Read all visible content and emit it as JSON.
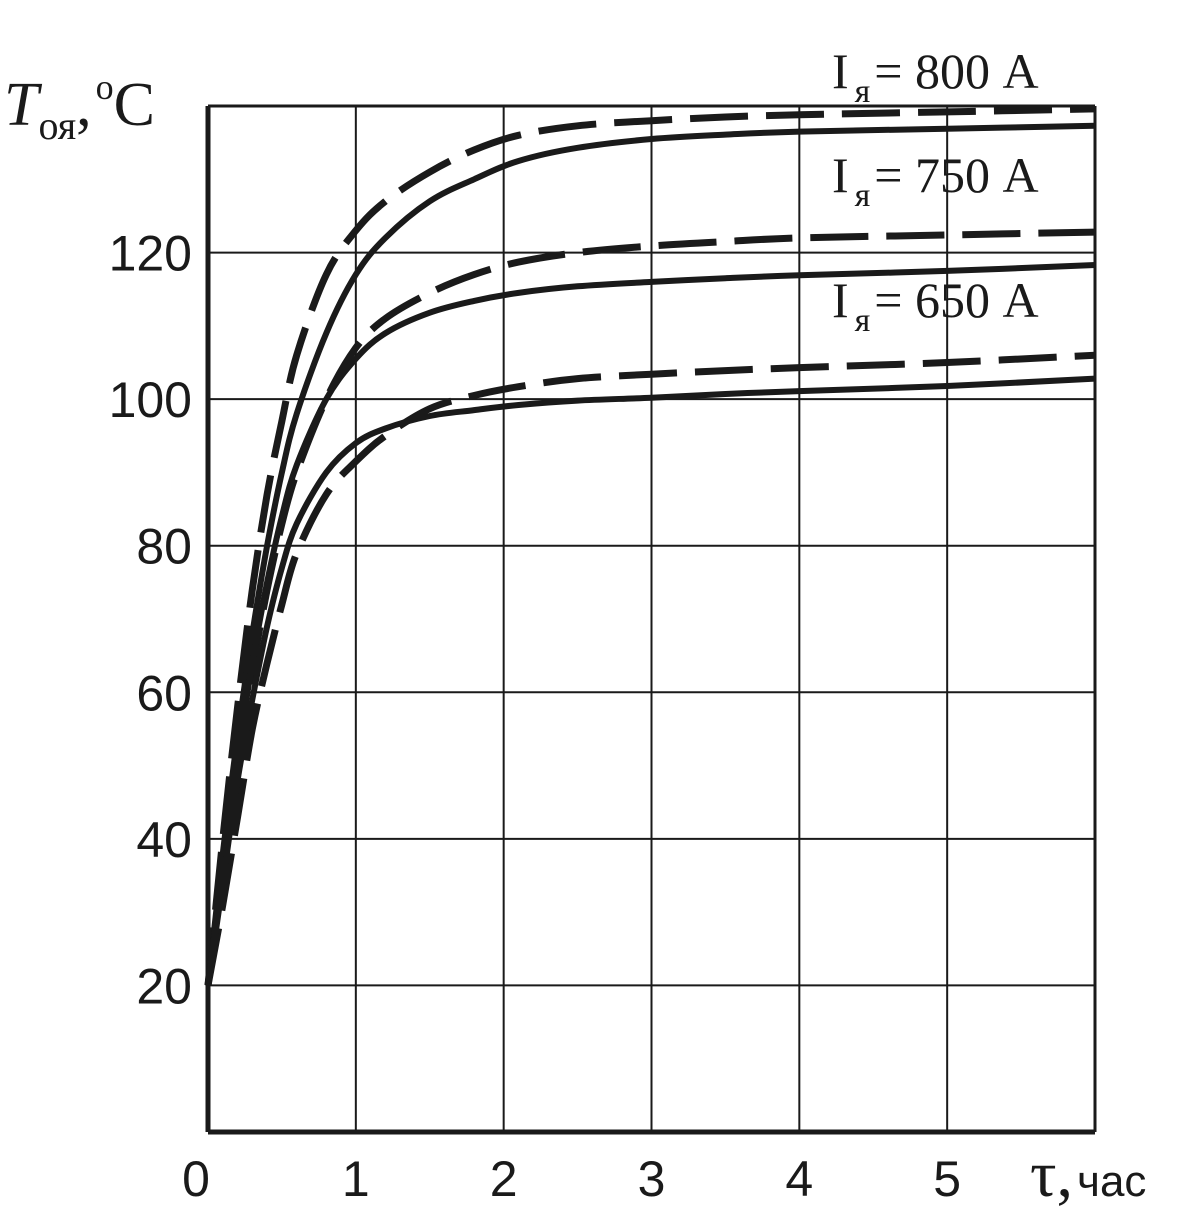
{
  "chart_data": {
    "type": "line",
    "title": "",
    "xlabel": {
      "symbol": "τ",
      "unit": "час"
    },
    "ylabel": {
      "symbol": "T",
      "subscript": "оя",
      "unit": "oC"
    },
    "xlim": [
      0,
      6
    ],
    "ylim": [
      0,
      140
    ],
    "x_ticks": [
      0,
      1,
      2,
      3,
      4,
      5
    ],
    "y_ticks": [
      20,
      40,
      60,
      80,
      100,
      120
    ],
    "x_tick_labels": [
      "0",
      "1",
      "2",
      "3",
      "4",
      "5"
    ],
    "y_tick_labels": [
      "20",
      "40",
      "60",
      "80",
      "100",
      "120"
    ],
    "grid": true,
    "legend_placement": "top-right",
    "line_color": "#1a1a1a",
    "labels": [
      {
        "text": "I",
        "sub": "я",
        "rest": "= 800 A"
      },
      {
        "text": "I",
        "sub": "я",
        "rest": "= 750 A"
      },
      {
        "text": "I",
        "sub": "я",
        "rest": "= 650 A"
      }
    ],
    "series": [
      {
        "style": "dashed",
        "x": [
          0,
          0.1,
          0.2,
          0.3,
          0.4,
          0.5,
          0.6,
          0.8,
          1.0,
          1.2,
          1.5,
          1.8,
          2.1,
          2.5,
          3,
          3.5,
          4,
          5,
          6
        ],
        "y": [
          20,
          40,
          58,
          74,
          87,
          97,
          106,
          117,
          123,
          127,
          131,
          134,
          136,
          137.3,
          138,
          138.5,
          138.8,
          139.2,
          139.6
        ]
      },
      {
        "style": "solid",
        "x": [
          0,
          0.1,
          0.2,
          0.3,
          0.4,
          0.5,
          0.6,
          0.8,
          1.0,
          1.2,
          1.5,
          1.8,
          2.1,
          2.5,
          3,
          3.5,
          4,
          5,
          6
        ],
        "y": [
          20,
          38,
          54,
          68,
          80,
          90,
          98,
          109,
          117,
          122,
          127,
          130,
          132.5,
          134.3,
          135.5,
          136.1,
          136.5,
          136.9,
          137.3
        ]
      },
      {
        "style": "dashed",
        "x": [
          0,
          0.1,
          0.2,
          0.3,
          0.4,
          0.5,
          0.6,
          0.8,
          1.0,
          1.2,
          1.5,
          1.8,
          2.1,
          2.5,
          3,
          3.5,
          4,
          5,
          6
        ],
        "y": [
          20,
          35,
          50,
          63,
          74,
          83,
          90,
          100,
          107,
          111,
          114.5,
          117,
          118.7,
          120,
          120.9,
          121.5,
          122,
          122.4,
          122.8
        ]
      },
      {
        "style": "solid",
        "x": [
          0,
          0.1,
          0.2,
          0.3,
          0.4,
          0.5,
          0.6,
          0.8,
          1.0,
          1.2,
          1.5,
          1.8,
          2.1,
          2.5,
          3,
          3.5,
          4,
          5,
          6
        ],
        "y": [
          20,
          36,
          51,
          64,
          75,
          84,
          91,
          100,
          105.5,
          109,
          111.8,
          113.4,
          114.5,
          115.4,
          116,
          116.5,
          116.9,
          117.5,
          118.3
        ]
      },
      {
        "style": "dashed",
        "x": [
          0,
          0.1,
          0.2,
          0.3,
          0.4,
          0.5,
          0.6,
          0.8,
          1.0,
          1.2,
          1.5,
          1.8,
          2.1,
          2.5,
          3,
          3.5,
          4,
          5,
          6
        ],
        "y": [
          20,
          31,
          43,
          55,
          64,
          72,
          79,
          87,
          91.5,
          95,
          98.7,
          100.5,
          101.7,
          102.8,
          103.4,
          103.9,
          104.3,
          105,
          106
        ]
      },
      {
        "style": "solid",
        "x": [
          0,
          0.1,
          0.2,
          0.3,
          0.4,
          0.5,
          0.6,
          0.8,
          1.0,
          1.2,
          1.5,
          1.8,
          2.1,
          2.5,
          3,
          3.5,
          4,
          5,
          6
        ],
        "y": [
          20,
          34,
          48,
          59,
          69,
          77,
          83,
          90,
          94,
          96,
          97.7,
          98.5,
          99.2,
          99.8,
          100.2,
          100.7,
          101.1,
          101.8,
          102.8
        ]
      }
    ]
  }
}
